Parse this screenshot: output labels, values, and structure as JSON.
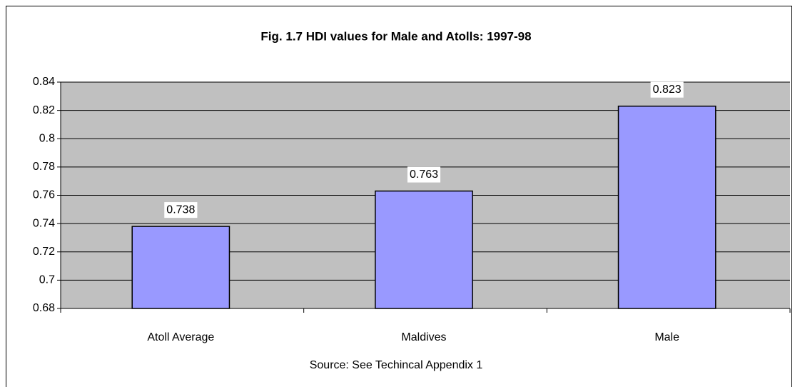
{
  "chart_data": {
    "type": "bar",
    "title": "Fig. 1.7 HDI values for Male and Atolls: 1997-98",
    "categories": [
      "Atoll Average",
      "Maldives",
      "Male"
    ],
    "values": [
      0.738,
      0.763,
      0.823
    ],
    "color": "#9999ff",
    "ylim": [
      0.68,
      0.84
    ],
    "yticks": [
      0.68,
      0.7,
      0.72,
      0.74,
      0.76,
      0.78,
      0.8,
      0.82,
      0.84
    ],
    "grid": true,
    "annotation": "Source: See Techincal Appendix 1"
  }
}
